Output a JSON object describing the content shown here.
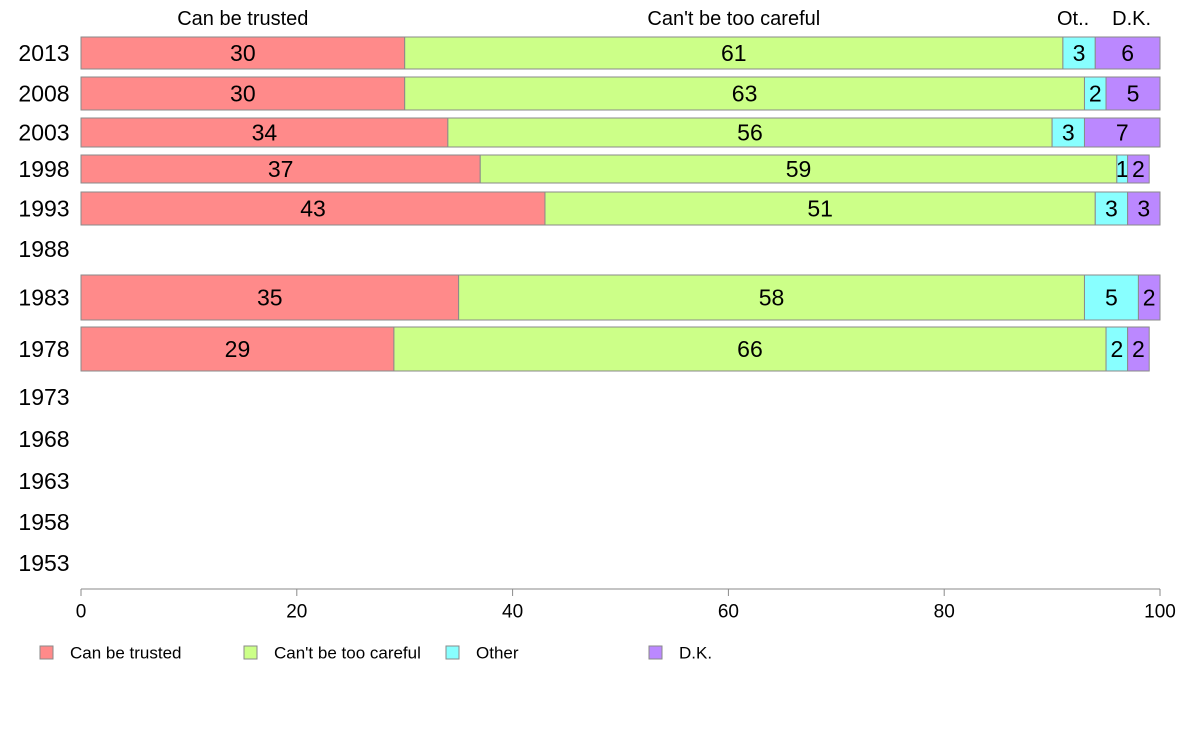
{
  "chart_data": {
    "type": "bar",
    "orientation": "horizontal",
    "stacked": true,
    "categories": [
      "2013",
      "2008",
      "2003",
      "1998",
      "1993",
      "1988",
      "1983",
      "1978",
      "1973",
      "1968",
      "1963",
      "1958",
      "1953"
    ],
    "series": [
      {
        "name": "Can be trusted",
        "color": "#ff8a8a",
        "values": [
          30,
          30,
          34,
          37,
          43,
          null,
          35,
          29,
          null,
          null,
          null,
          null,
          null
        ],
        "labels": [
          "30",
          "30",
          "34",
          "37",
          "43",
          "",
          "35",
          "29",
          "",
          "",
          "",
          "",
          ""
        ]
      },
      {
        "name": "Can't be too careful",
        "color": "#ccff88",
        "values": [
          61,
          63,
          56,
          59,
          51,
          null,
          58,
          66,
          null,
          null,
          null,
          null,
          null
        ],
        "labels": [
          "61",
          "63",
          "56",
          "59",
          "51",
          "",
          "58",
          "66",
          "",
          "",
          "",
          "",
          ""
        ]
      },
      {
        "name": "Other",
        "color": "#88ffff",
        "values": [
          3,
          2,
          3,
          1,
          3,
          null,
          5,
          2,
          null,
          null,
          null,
          null,
          null
        ],
        "labels": [
          "3",
          "2",
          "3",
          "1",
          "3",
          "",
          "5",
          "2",
          "",
          "",
          "",
          "",
          ""
        ]
      },
      {
        "name": "D.K.",
        "color": "#bb88ff",
        "values": [
          6,
          5,
          7,
          2,
          3,
          null,
          2,
          2,
          null,
          null,
          null,
          null,
          null
        ],
        "labels": [
          "6",
          "5",
          "7",
          "2",
          "3",
          "",
          "2",
          "2",
          "",
          "",
          "",
          "",
          ""
        ]
      }
    ],
    "top_labels": [
      "Can be trusted",
      "Can't be too careful",
      "Ot..",
      "D.K."
    ],
    "xlim": [
      0,
      100
    ],
    "xticks": [
      "0",
      "20",
      "40",
      "60",
      "80",
      "100"
    ],
    "grid": false,
    "legend_position": "bottom"
  }
}
